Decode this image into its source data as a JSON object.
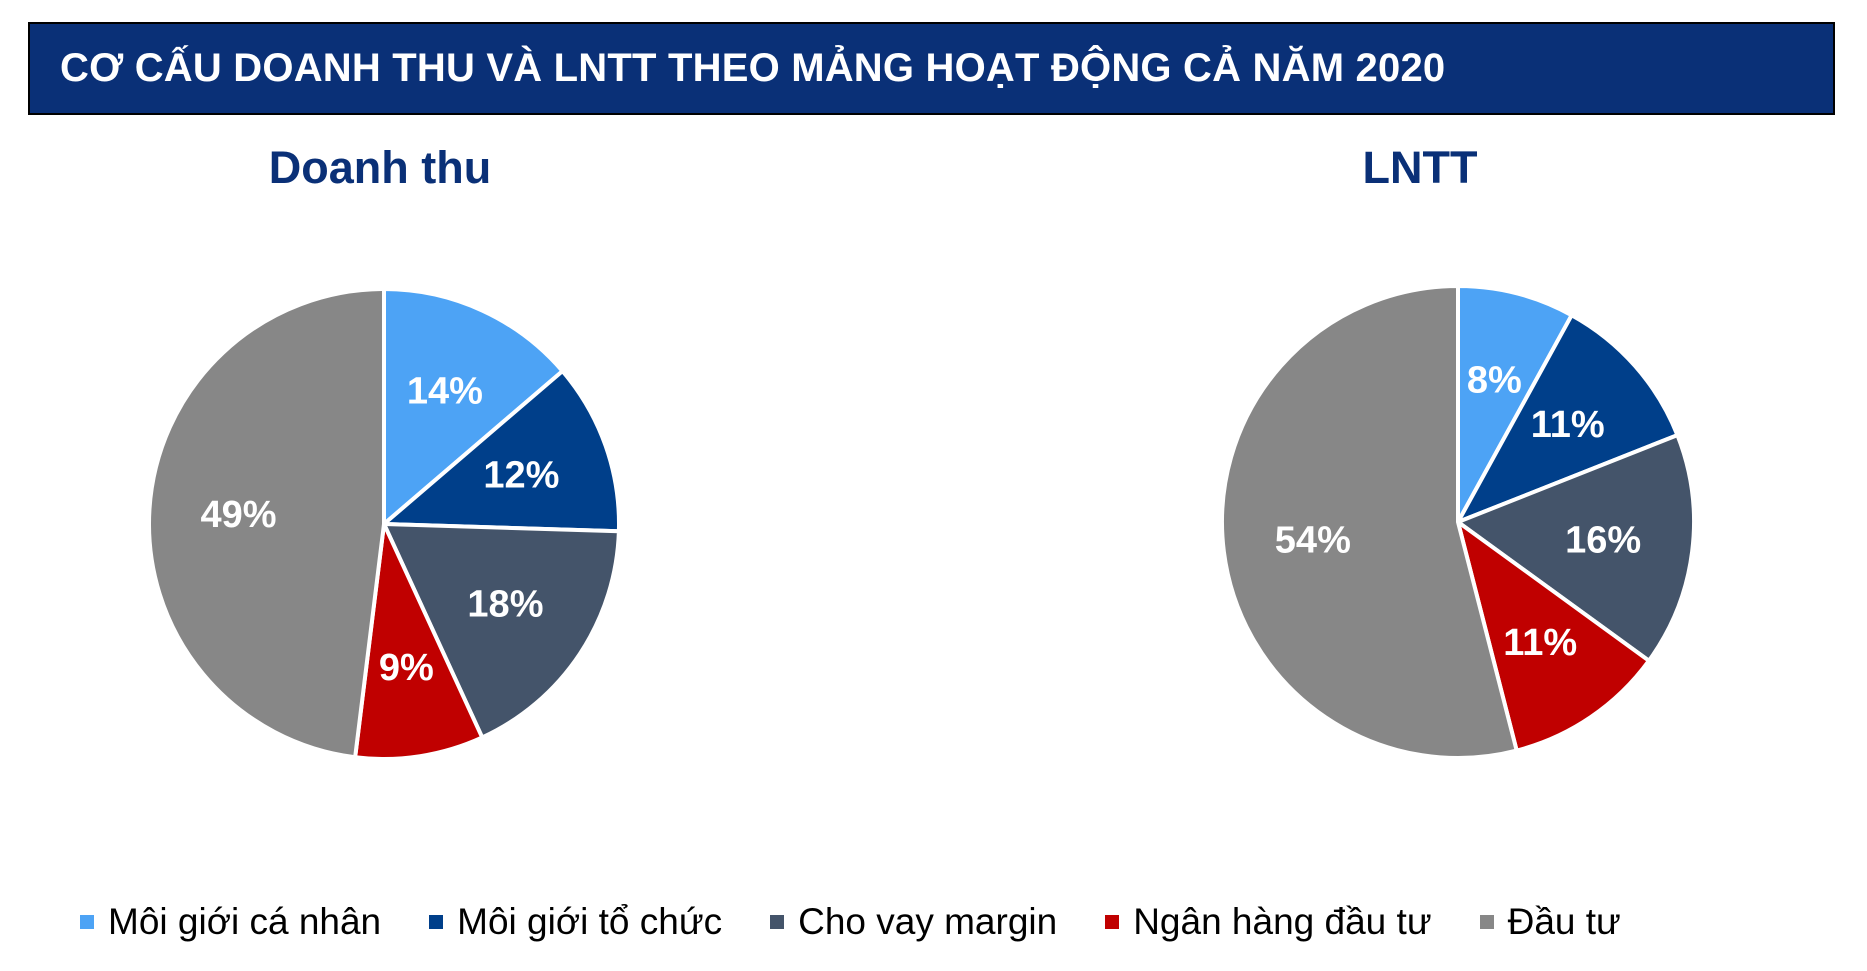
{
  "header": {
    "title": "CƠ CẤU DOANH THU VÀ LNTT THEO MẢNG HOẠT ĐỘNG CẢ NĂM 2020"
  },
  "colors": {
    "banner_bg": "#0a3077",
    "title_text": "#0a3077",
    "slice_label": "#ffffff",
    "slice_border": "#ffffff"
  },
  "legend": {
    "placement": "bottom",
    "items": [
      {
        "label": "Môi giới cá nhân",
        "color": "#4da3f5"
      },
      {
        "label": "Môi giới tổ chức",
        "color": "#003f8a"
      },
      {
        "label": "Cho vay margin",
        "color": "#44546a"
      },
      {
        "label": "Ngân hàng đầu tư",
        "color": "#c00000"
      },
      {
        "label": "Đầu tư",
        "color": "#878787"
      }
    ]
  },
  "chart_data": [
    {
      "type": "pie",
      "title": "Doanh thu",
      "categories": [
        "Môi giới cá nhân",
        "Môi giới tổ chức",
        "Cho vay margin",
        "Ngân hàng đầu tư",
        "Đầu tư"
      ],
      "values": [
        14,
        12,
        18,
        9,
        49
      ],
      "labels": [
        "14%",
        "12%",
        "18%",
        "9%",
        "49%"
      ],
      "colors": [
        "#4da3f5",
        "#003f8a",
        "#44546a",
        "#c00000",
        "#878787"
      ]
    },
    {
      "type": "pie",
      "title": "LNTT",
      "categories": [
        "Môi giới cá nhân",
        "Môi giới tổ chức",
        "Cho vay margin",
        "Ngân hàng đầu tư",
        "Đầu tư"
      ],
      "values": [
        8,
        11,
        16,
        11,
        54
      ],
      "labels": [
        "8%",
        "11%",
        "16%",
        "11%",
        "54%"
      ],
      "colors": [
        "#4da3f5",
        "#003f8a",
        "#44546a",
        "#c00000",
        "#878787"
      ]
    }
  ]
}
